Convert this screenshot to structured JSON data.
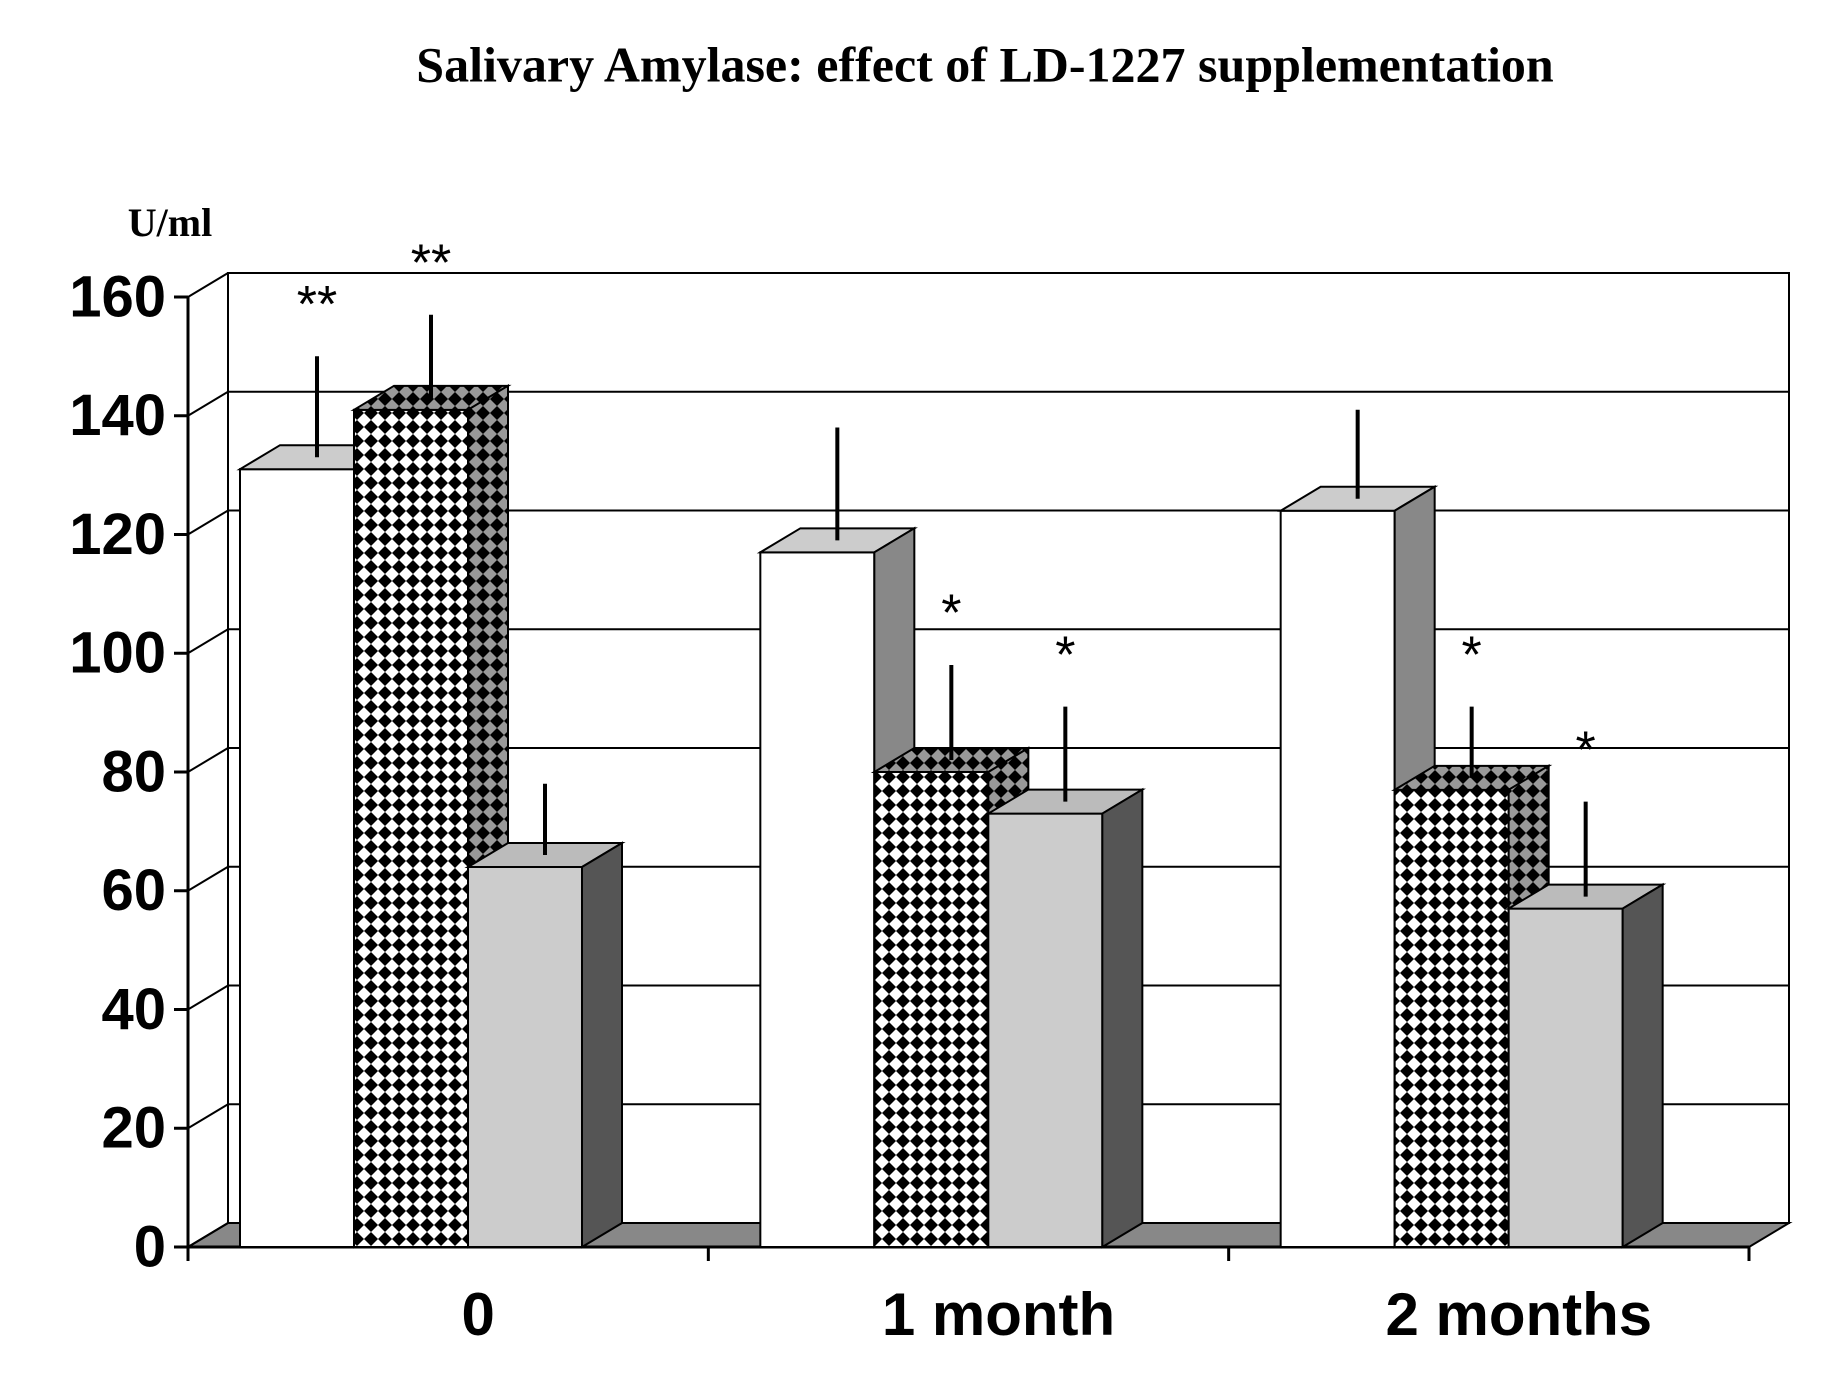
{
  "chart_data": {
    "type": "bar3d",
    "title": "Salivary Amylase: effect of LD-1227 supplementation",
    "y_label": "U/ml",
    "categories": [
      "0",
      "1 month",
      "2 months"
    ],
    "series": [
      {
        "color": "#ffffff",
        "values": [
          131,
          117,
          124
        ],
        "errors": [
          17,
          19,
          15
        ],
        "annotations": [
          "**",
          null,
          null
        ]
      },
      {
        "color": "#000000",
        "pattern": "checkerboard",
        "values": [
          141,
          80,
          77
        ],
        "errors": [
          14,
          16,
          12
        ],
        "annotations": [
          "**",
          "*",
          "*"
        ]
      },
      {
        "color": "#cccccc",
        "values": [
          64,
          73,
          57
        ],
        "errors": [
          12,
          16,
          16
        ],
        "annotations": [
          null,
          "*",
          "*"
        ]
      }
    ],
    "ylim": [
      0,
      160
    ],
    "yticks": [
      0,
      20,
      40,
      60,
      80,
      100,
      120,
      140,
      160
    ],
    "grid": true
  }
}
